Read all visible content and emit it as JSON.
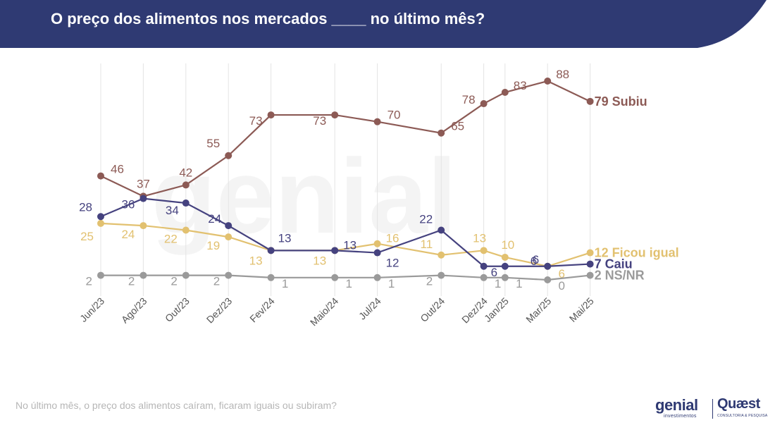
{
  "header": {
    "title": "O preço dos alimentos nos mercados ____ no último mês?"
  },
  "footer": {
    "question": "No último mês, o preço dos alimentos caíram, ficaram iguais ou subiram?"
  },
  "logos": {
    "genial": "genial",
    "genial_sub": "investimentos",
    "quaest": "Quæst",
    "quaest_sub": "CONSULTORIA & PESQUISA"
  },
  "colors": {
    "header_bg": "#2f3a73",
    "subiu": "#8c5a55",
    "caiu": "#45427f",
    "ficou_igual": "#e2c170",
    "nsnr": "#9a9a9a",
    "grid": "#e4e4e4"
  },
  "chart_data": {
    "type": "line",
    "x_ticks": [
      "Jun/23",
      "Ago/23",
      "Out/23",
      "Dez/23",
      "Fev/24",
      "Maio/24",
      "Jul/24",
      "Out/24",
      "Dez/24",
      "Jan/25",
      "Mar/25",
      "Mai/25"
    ],
    "x_positions": [
      0,
      2,
      4,
      6,
      8,
      11,
      13,
      16,
      18,
      19,
      21,
      23
    ],
    "series": [
      {
        "name": "Subiu",
        "end_label": "79 Subiu",
        "color": "#8c5a55",
        "points": [
          {
            "x": 0,
            "v": 46
          },
          {
            "x": 2,
            "v": 37
          },
          {
            "x": 4,
            "v": 42
          },
          {
            "x": 6,
            "v": 55
          },
          {
            "x": 8,
            "v": 73
          },
          {
            "x": 11,
            "v": 73
          },
          {
            "x": 13,
            "v": 70
          },
          {
            "x": 16,
            "v": 65
          },
          {
            "x": 18,
            "v": 78
          },
          {
            "x": 19,
            "v": 83
          },
          {
            "x": 21,
            "v": 88
          },
          {
            "x": 23,
            "v": 79
          }
        ]
      },
      {
        "name": "Ficou igual",
        "end_label": "12 Ficou igual",
        "color": "#e2c170",
        "points": [
          {
            "x": 0,
            "v": 25
          },
          {
            "x": 2,
            "v": 24
          },
          {
            "x": 4,
            "v": 22
          },
          {
            "x": 6,
            "v": 19
          },
          {
            "x": 8,
            "v": 13
          },
          {
            "x": 11,
            "v": 13
          },
          {
            "x": 13,
            "v": 16
          },
          {
            "x": 16,
            "v": 11
          },
          {
            "x": 18,
            "v": 13
          },
          {
            "x": 19,
            "v": 10
          },
          {
            "x": 21,
            "v": 6
          },
          {
            "x": 23,
            "v": 12
          }
        ]
      },
      {
        "name": "Caiu",
        "end_label": "7 Caiu",
        "color": "#45427f",
        "points": [
          {
            "x": 0,
            "v": 28
          },
          {
            "x": 2,
            "v": 36
          },
          {
            "x": 4,
            "v": 34
          },
          {
            "x": 6,
            "v": 24
          },
          {
            "x": 8,
            "v": 13
          },
          {
            "x": 11,
            "v": 13
          },
          {
            "x": 13,
            "v": 12
          },
          {
            "x": 16,
            "v": 22
          },
          {
            "x": 18,
            "v": 6
          },
          {
            "x": 19,
            "v": 6
          },
          {
            "x": 21,
            "v": 6
          },
          {
            "x": 23,
            "v": 7
          }
        ]
      },
      {
        "name": "NS/NR",
        "end_label": "2 NS/NR",
        "color": "#9a9a9a",
        "points": [
          {
            "x": 0,
            "v": 2
          },
          {
            "x": 2,
            "v": 2
          },
          {
            "x": 4,
            "v": 2
          },
          {
            "x": 6,
            "v": 2
          },
          {
            "x": 8,
            "v": 1
          },
          {
            "x": 11,
            "v": 1
          },
          {
            "x": 13,
            "v": 1
          },
          {
            "x": 16,
            "v": 2
          },
          {
            "x": 18,
            "v": 1
          },
          {
            "x": 19,
            "v": 1
          },
          {
            "x": 21,
            "v": 0
          },
          {
            "x": 23,
            "v": 2
          }
        ]
      }
    ],
    "ylim": [
      0,
      100
    ],
    "grid": "vertical",
    "legend": "end-of-line labels"
  }
}
